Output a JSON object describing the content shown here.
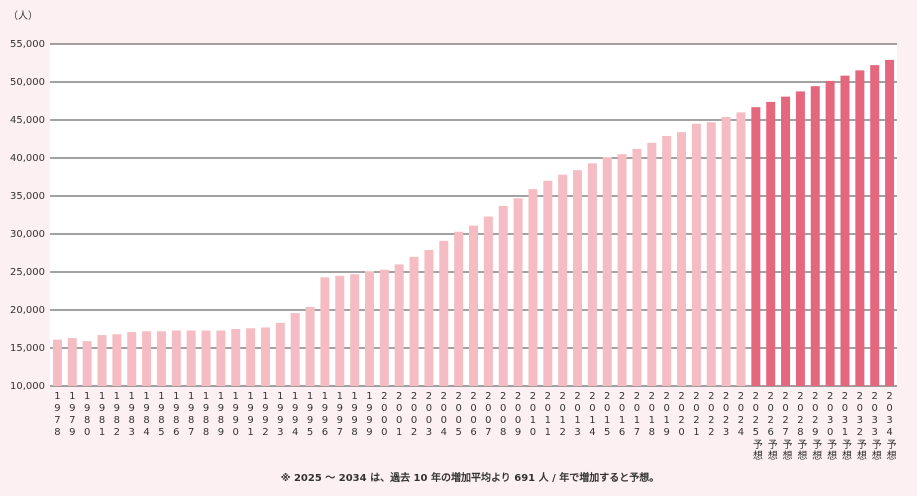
{
  "chart_data": {
    "type": "bar",
    "y_label": "（人）",
    "note": "※ 2025 ～ 2034 は、過去 10 年の増加平均より 691 人 / 年で増加すると予想。",
    "categories": [
      "1978",
      "1979",
      "1980",
      "1981",
      "1982",
      "1983",
      "1984",
      "1985",
      "1986",
      "1987",
      "1988",
      "1989",
      "1990",
      "1991",
      "1992",
      "1993",
      "1994",
      "1995",
      "1996",
      "1997",
      "1998",
      "1999",
      "2000",
      "2001",
      "2002",
      "2003",
      "2004",
      "2005",
      "2006",
      "2007",
      "2008",
      "2009",
      "2010",
      "2011",
      "2012",
      "2013",
      "2014",
      "2015",
      "2016",
      "2017",
      "2018",
      "2019",
      "2020",
      "2021",
      "2022",
      "2023",
      "2024",
      "2025予想",
      "2026予想",
      "2027予想",
      "2028予想",
      "2029予想",
      "2030予想",
      "2031予想",
      "2032予想",
      "2033予想",
      "2034予想"
    ],
    "values": [
      16100,
      16300,
      15900,
      16700,
      16800,
      17100,
      17200,
      17200,
      17300,
      17300,
      17300,
      17300,
      17500,
      17600,
      17700,
      18300,
      19600,
      20400,
      24300,
      24500,
      24700,
      25100,
      25300,
      26000,
      27000,
      27900,
      29100,
      30300,
      31100,
      32300,
      33700,
      34700,
      35900,
      37000,
      37800,
      38400,
      39300,
      40100,
      40500,
      41200,
      42000,
      42900,
      43400,
      44500,
      44700,
      45400,
      46000,
      46691,
      47382,
      48073,
      48764,
      49455,
      50146,
      50837,
      51528,
      52219,
      52910
    ],
    "colors": [
      "#f5bcc4",
      "#f5bcc4",
      "#f5bcc4",
      "#f5bcc4",
      "#f5bcc4",
      "#f5bcc4",
      "#f5bcc4",
      "#f5bcc4",
      "#f5bcc4",
      "#f5bcc4",
      "#f5bcc4",
      "#f5bcc4",
      "#f5bcc4",
      "#f5bcc4",
      "#f5bcc4",
      "#f5bcc4",
      "#f5bcc4",
      "#f5bcc4",
      "#f5bcc4",
      "#f5bcc4",
      "#f5bcc4",
      "#f5bcc4",
      "#f5bcc4",
      "#f5bcc4",
      "#f5bcc4",
      "#f5bcc4",
      "#f5bcc4",
      "#f5bcc4",
      "#f5bcc4",
      "#f5bcc4",
      "#f5bcc4",
      "#f5bcc4",
      "#f5bcc4",
      "#f5bcc4",
      "#f5bcc4",
      "#f5bcc4",
      "#f5bcc4",
      "#f5bcc4",
      "#f5bcc4",
      "#f5bcc4",
      "#f5bcc4",
      "#f5bcc4",
      "#f5bcc4",
      "#f5bcc4",
      "#f5bcc4",
      "#f5bcc4",
      "#f5bcc4",
      "#e5677e",
      "#e5677e",
      "#e5677e",
      "#e5677e",
      "#e5677e",
      "#e5677e",
      "#e5677e",
      "#e5677e",
      "#e5677e",
      "#e5677e"
    ],
    "ylim": [
      10000,
      55000
    ],
    "yticks": [
      {
        "value": 10000,
        "label": "10,000"
      },
      {
        "value": 15000,
        "label": "15,000"
      },
      {
        "value": 20000,
        "label": "20,000"
      },
      {
        "value": 25000,
        "label": "25,000"
      },
      {
        "value": 30000,
        "label": "30,000"
      },
      {
        "value": 35000,
        "label": "35,000"
      },
      {
        "value": 40000,
        "label": "40,000"
      },
      {
        "value": 45000,
        "label": "45,000"
      },
      {
        "value": 50000,
        "label": "50,000"
      },
      {
        "value": 55000,
        "label": "55,000"
      }
    ],
    "grid": true
  }
}
